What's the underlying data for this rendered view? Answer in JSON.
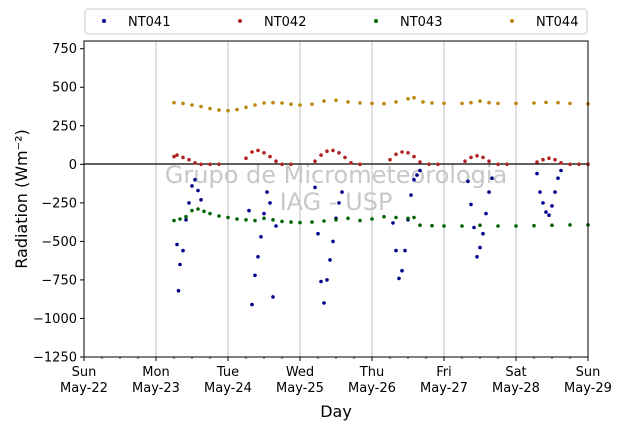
{
  "chart_data": {
    "type": "scatter",
    "xlabel": "Day",
    "ylabel": "Radiation (Wm⁻²)",
    "ylim": [
      -1250,
      800
    ],
    "yticks": [
      750,
      500,
      250,
      0,
      -250,
      -500,
      -750,
      -1000,
      -1250
    ],
    "ytick_labels": [
      "750",
      "500",
      "250",
      "0",
      "−250",
      "−500",
      "−750",
      "−1000",
      "−1250"
    ],
    "xlim": [
      "2022-05-22",
      "2022-05-29"
    ],
    "xticks": [
      {
        "date": "2022-05-22",
        "line1": "Sun",
        "line2": "May-22"
      },
      {
        "date": "2022-05-23",
        "line1": "Mon",
        "line2": "May-23"
      },
      {
        "date": "2022-05-24",
        "line1": "Tue",
        "line2": "May-24"
      },
      {
        "date": "2022-05-25",
        "line1": "Wed",
        "line2": "May-25"
      },
      {
        "date": "2022-05-26",
        "line1": "Thu",
        "line2": "May-26"
      },
      {
        "date": "2022-05-27",
        "line1": "Fri",
        "line2": "May-27"
      },
      {
        "date": "2022-05-28",
        "line1": "Sat",
        "line2": "May-28"
      },
      {
        "date": "2022-05-29",
        "line1": "Sun",
        "line2": "May-29"
      }
    ],
    "grid": "vertical",
    "zero_line": true,
    "legend_placement": "top, above plot",
    "watermark": [
      "Grupo de Micrometeorologia",
      "IAG - USP"
    ],
    "series": [
      {
        "name": "NT041",
        "color": "#00008b",
        "points": [
          [
            "2022-05-23 07:00",
            -520
          ],
          [
            "2022-05-23 07:30",
            -820
          ],
          [
            "2022-05-23 08:00",
            -650
          ],
          [
            "2022-05-23 09:00",
            -560
          ],
          [
            "2022-05-23 10:00",
            -360
          ],
          [
            "2022-05-23 11:00",
            -250
          ],
          [
            "2022-05-23 12:00",
            -140
          ],
          [
            "2022-05-23 13:00",
            -100
          ],
          [
            "2022-05-23 14:00",
            -170
          ],
          [
            "2022-05-23 15:00",
            -230
          ],
          [
            "2022-05-24 07:00",
            -300
          ],
          [
            "2022-05-24 08:00",
            -910
          ],
          [
            "2022-05-24 09:00",
            -720
          ],
          [
            "2022-05-24 10:00",
            -600
          ],
          [
            "2022-05-24 11:00",
            -470
          ],
          [
            "2022-05-24 12:00",
            -320
          ],
          [
            "2022-05-24 13:00",
            -180
          ],
          [
            "2022-05-24 14:00",
            -250
          ],
          [
            "2022-05-24 15:00",
            -860
          ],
          [
            "2022-05-24 16:00",
            -400
          ],
          [
            "2022-05-25 05:00",
            -150
          ],
          [
            "2022-05-25 06:00",
            -450
          ],
          [
            "2022-05-25 07:00",
            -760
          ],
          [
            "2022-05-25 08:00",
            -900
          ],
          [
            "2022-05-25 09:00",
            -750
          ],
          [
            "2022-05-25 10:00",
            -620
          ],
          [
            "2022-05-25 11:00",
            -500
          ],
          [
            "2022-05-25 12:00",
            -350
          ],
          [
            "2022-05-25 13:00",
            -250
          ],
          [
            "2022-05-25 14:00",
            -180
          ],
          [
            "2022-05-26 07:00",
            -380
          ],
          [
            "2022-05-26 08:00",
            -560
          ],
          [
            "2022-05-26 09:00",
            -740
          ],
          [
            "2022-05-26 10:00",
            -690
          ],
          [
            "2022-05-26 11:00",
            -560
          ],
          [
            "2022-05-26 12:00",
            -360
          ],
          [
            "2022-05-26 13:00",
            -200
          ],
          [
            "2022-05-26 14:00",
            -100
          ],
          [
            "2022-05-26 15:00",
            -70
          ],
          [
            "2022-05-26 16:00",
            -40
          ],
          [
            "2022-05-27 08:00",
            -110
          ],
          [
            "2022-05-27 09:00",
            -260
          ],
          [
            "2022-05-27 10:00",
            -410
          ],
          [
            "2022-05-27 11:00",
            -600
          ],
          [
            "2022-05-27 12:00",
            -540
          ],
          [
            "2022-05-27 13:00",
            -450
          ],
          [
            "2022-05-27 14:00",
            -320
          ],
          [
            "2022-05-27 15:00",
            -180
          ],
          [
            "2022-05-27 16:00",
            -90
          ],
          [
            "2022-05-28 07:00",
            -60
          ],
          [
            "2022-05-28 08:00",
            -180
          ],
          [
            "2022-05-28 09:00",
            -250
          ],
          [
            "2022-05-28 10:00",
            -310
          ],
          [
            "2022-05-28 11:00",
            -330
          ],
          [
            "2022-05-28 12:00",
            -270
          ],
          [
            "2022-05-28 13:00",
            -180
          ],
          [
            "2022-05-28 14:00",
            -90
          ],
          [
            "2022-05-28 15:00",
            -40
          ]
        ]
      },
      {
        "name": "NT042",
        "color": "#b22222",
        "points": [
          [
            "2022-05-23 06:00",
            50
          ],
          [
            "2022-05-23 07:00",
            60
          ],
          [
            "2022-05-23 09:00",
            45
          ],
          [
            "2022-05-23 11:00",
            30
          ],
          [
            "2022-05-23 13:00",
            10
          ],
          [
            "2022-05-23 15:00",
            0
          ],
          [
            "2022-05-23 18:00",
            0
          ],
          [
            "2022-05-23 21:00",
            0
          ],
          [
            "2022-05-24 06:00",
            40
          ],
          [
            "2022-05-24 08:00",
            80
          ],
          [
            "2022-05-24 10:00",
            90
          ],
          [
            "2022-05-24 12:00",
            75
          ],
          [
            "2022-05-24 14:00",
            50
          ],
          [
            "2022-05-24 16:00",
            20
          ],
          [
            "2022-05-24 18:00",
            0
          ],
          [
            "2022-05-24 21:00",
            0
          ],
          [
            "2022-05-25 05:00",
            20
          ],
          [
            "2022-05-25 07:00",
            60
          ],
          [
            "2022-05-25 09:00",
            85
          ],
          [
            "2022-05-25 11:00",
            90
          ],
          [
            "2022-05-25 13:00",
            75
          ],
          [
            "2022-05-25 15:00",
            45
          ],
          [
            "2022-05-25 17:00",
            10
          ],
          [
            "2022-05-25 20:00",
            0
          ],
          [
            "2022-05-26 06:00",
            30
          ],
          [
            "2022-05-26 08:00",
            65
          ],
          [
            "2022-05-26 10:00",
            80
          ],
          [
            "2022-05-26 12:00",
            75
          ],
          [
            "2022-05-26 14:00",
            50
          ],
          [
            "2022-05-26 16:00",
            15
          ],
          [
            "2022-05-26 19:00",
            0
          ],
          [
            "2022-05-26 22:00",
            0
          ],
          [
            "2022-05-27 07:00",
            20
          ],
          [
            "2022-05-27 09:00",
            45
          ],
          [
            "2022-05-27 11:00",
            55
          ],
          [
            "2022-05-27 13:00",
            45
          ],
          [
            "2022-05-27 15:00",
            20
          ],
          [
            "2022-05-27 18:00",
            0
          ],
          [
            "2022-05-27 21:00",
            0
          ],
          [
            "2022-05-28 07:00",
            15
          ],
          [
            "2022-05-28 09:00",
            30
          ],
          [
            "2022-05-28 11:00",
            40
          ],
          [
            "2022-05-28 13:00",
            30
          ],
          [
            "2022-05-28 15:00",
            10
          ],
          [
            "2022-05-28 18:00",
            0
          ],
          [
            "2022-05-28 21:00",
            0
          ],
          [
            "2022-05-29 00:00",
            0
          ]
        ]
      },
      {
        "name": "NT043",
        "color": "#006400",
        "points": [
          [
            "2022-05-23 06:00",
            -365
          ],
          [
            "2022-05-23 08:00",
            -355
          ],
          [
            "2022-05-23 10:00",
            -340
          ],
          [
            "2022-05-23 12:00",
            -300
          ],
          [
            "2022-05-23 14:00",
            -290
          ],
          [
            "2022-05-23 16:00",
            -305
          ],
          [
            "2022-05-23 18:00",
            -320
          ],
          [
            "2022-05-23 21:00",
            -335
          ],
          [
            "2022-05-24 00:00",
            -345
          ],
          [
            "2022-05-24 03:00",
            -355
          ],
          [
            "2022-05-24 06:00",
            -360
          ],
          [
            "2022-05-24 09:00",
            -365
          ],
          [
            "2022-05-24 12:00",
            -350
          ],
          [
            "2022-05-24 15:00",
            -360
          ],
          [
            "2022-05-24 18:00",
            -370
          ],
          [
            "2022-05-24 21:00",
            -375
          ],
          [
            "2022-05-25 00:00",
            -378
          ],
          [
            "2022-05-25 04:00",
            -375
          ],
          [
            "2022-05-25 08:00",
            -368
          ],
          [
            "2022-05-25 12:00",
            -360
          ],
          [
            "2022-05-25 16:00",
            -350
          ],
          [
            "2022-05-25 20:00",
            -365
          ],
          [
            "2022-05-26 00:00",
            -355
          ],
          [
            "2022-05-26 04:00",
            -340
          ],
          [
            "2022-05-26 08:00",
            -345
          ],
          [
            "2022-05-26 12:00",
            -350
          ],
          [
            "2022-05-26 14:00",
            -345
          ],
          [
            "2022-05-26 16:00",
            -395
          ],
          [
            "2022-05-26 20:00",
            -398
          ],
          [
            "2022-05-27 00:00",
            -400
          ],
          [
            "2022-05-27 06:00",
            -400
          ],
          [
            "2022-05-27 12:00",
            -395
          ],
          [
            "2022-05-27 18:00",
            -400
          ],
          [
            "2022-05-28 00:00",
            -400
          ],
          [
            "2022-05-28 06:00",
            -398
          ],
          [
            "2022-05-28 12:00",
            -395
          ],
          [
            "2022-05-28 18:00",
            -393
          ],
          [
            "2022-05-29 00:00",
            -393
          ]
        ]
      },
      {
        "name": "NT044",
        "color": "#b8860b",
        "points": [
          [
            "2022-05-23 06:00",
            400
          ],
          [
            "2022-05-23 09:00",
            395
          ],
          [
            "2022-05-23 12:00",
            385
          ],
          [
            "2022-05-23 15:00",
            375
          ],
          [
            "2022-05-23 18:00",
            362
          ],
          [
            "2022-05-23 21:00",
            352
          ],
          [
            "2022-05-24 00:00",
            348
          ],
          [
            "2022-05-24 03:00",
            355
          ],
          [
            "2022-05-24 06:00",
            370
          ],
          [
            "2022-05-24 09:00",
            385
          ],
          [
            "2022-05-24 12:00",
            398
          ],
          [
            "2022-05-24 15:00",
            400
          ],
          [
            "2022-05-24 18:00",
            398
          ],
          [
            "2022-05-24 21:00",
            390
          ],
          [
            "2022-05-25 00:00",
            385
          ],
          [
            "2022-05-25 04:00",
            390
          ],
          [
            "2022-05-25 08:00",
            410
          ],
          [
            "2022-05-25 12:00",
            415
          ],
          [
            "2022-05-25 16:00",
            405
          ],
          [
            "2022-05-25 20:00",
            398
          ],
          [
            "2022-05-26 00:00",
            395
          ],
          [
            "2022-05-26 04:00",
            393
          ],
          [
            "2022-05-26 08:00",
            405
          ],
          [
            "2022-05-26 12:00",
            425
          ],
          [
            "2022-05-26 14:00",
            432
          ],
          [
            "2022-05-26 17:00",
            405
          ],
          [
            "2022-05-26 20:00",
            398
          ],
          [
            "2022-05-27 00:00",
            396
          ],
          [
            "2022-05-27 06:00",
            395
          ],
          [
            "2022-05-27 09:00",
            400
          ],
          [
            "2022-05-27 12:00",
            410
          ],
          [
            "2022-05-27 15:00",
            400
          ],
          [
            "2022-05-27 18:00",
            395
          ],
          [
            "2022-05-28 00:00",
            395
          ],
          [
            "2022-05-28 06:00",
            398
          ],
          [
            "2022-05-28 10:00",
            402
          ],
          [
            "2022-05-28 14:00",
            400
          ],
          [
            "2022-05-28 18:00",
            395
          ],
          [
            "2022-05-29 00:00",
            392
          ]
        ]
      }
    ]
  }
}
